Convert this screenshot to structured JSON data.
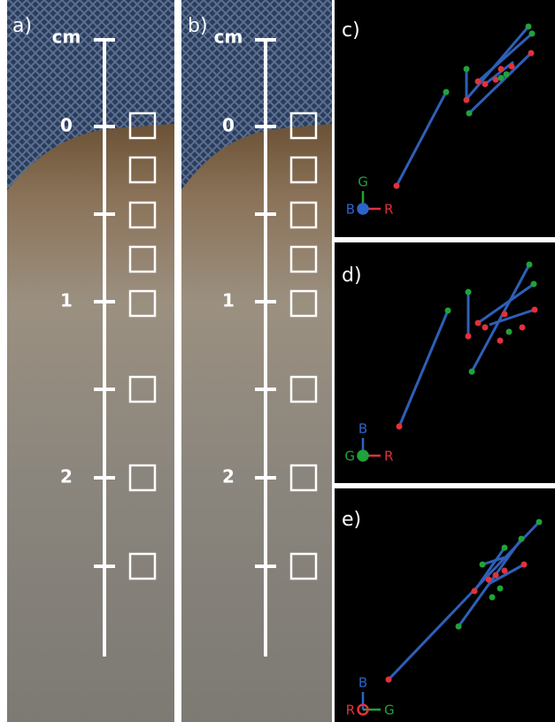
{
  "panels": [
    {
      "label": "a)",
      "scale": {
        "unit": "cm",
        "ticks": [
          "0",
          "1",
          "2"
        ]
      }
    },
    {
      "label": "b)",
      "scale": {
        "unit": "cm",
        "ticks": [
          "0",
          "1",
          "2"
        ]
      }
    },
    {
      "label": "c)",
      "axes": {
        "up": "G",
        "origin": "B",
        "right": "R"
      }
    },
    {
      "label": "d)",
      "axes": {
        "up": "B",
        "origin": "G",
        "right": "R"
      }
    },
    {
      "label": "e)",
      "axes": {
        "up": "B",
        "origin": "R",
        "right": "G"
      }
    }
  ]
}
